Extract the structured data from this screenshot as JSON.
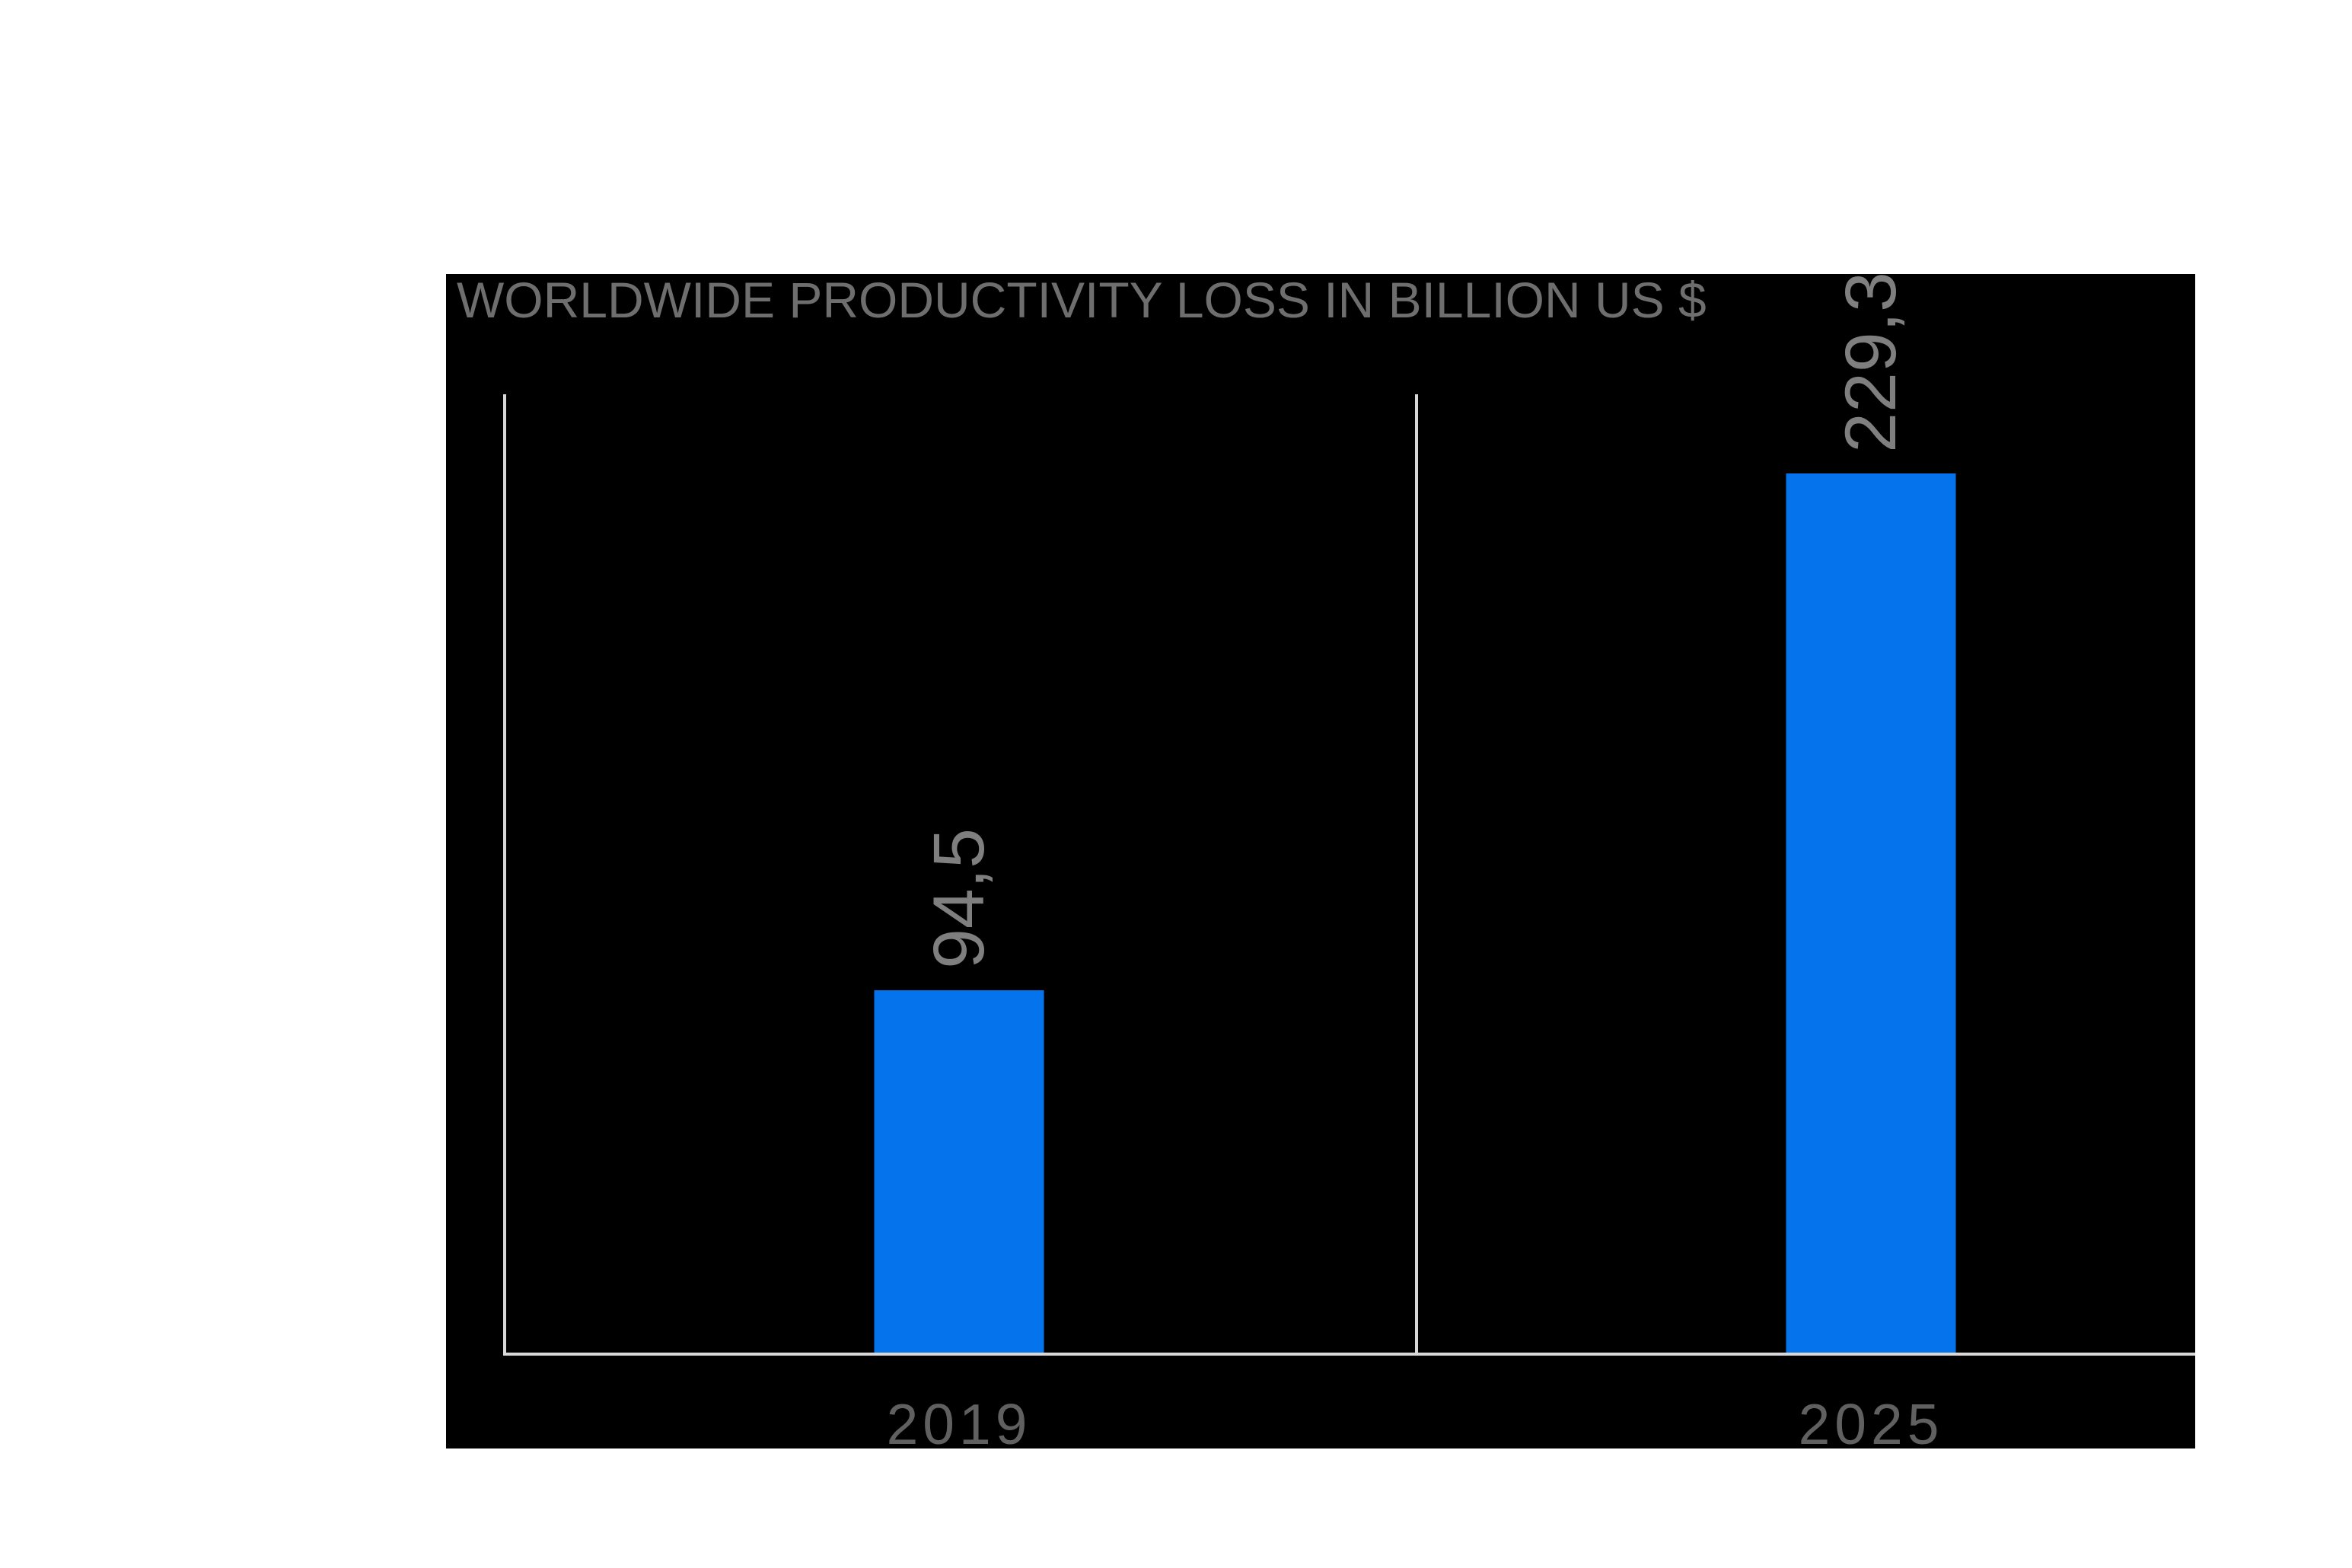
{
  "colors": {
    "page_background": "#ffffff",
    "chart_background": "#000000",
    "bar": "#0473ec",
    "axis_line": "#d8d8d8",
    "title_text": "#6e6e6e",
    "value_text": "#7f7f7f",
    "category_text": "#606060"
  },
  "chart_data": {
    "type": "bar",
    "title": "WORLDWIDE PRODUCTIVITY LOSS IN BILLION US $",
    "categories": [
      "2019",
      "2025"
    ],
    "values": [
      94.5,
      229.3
    ],
    "value_labels": [
      "94,5",
      "229,3"
    ],
    "xlabel": "",
    "ylabel": "",
    "ylim": [
      0,
      250
    ],
    "grid": false,
    "legend": false,
    "y_axis_ticks_visible": false,
    "value_label_rotation_deg": -90,
    "orientation": "vertical"
  }
}
